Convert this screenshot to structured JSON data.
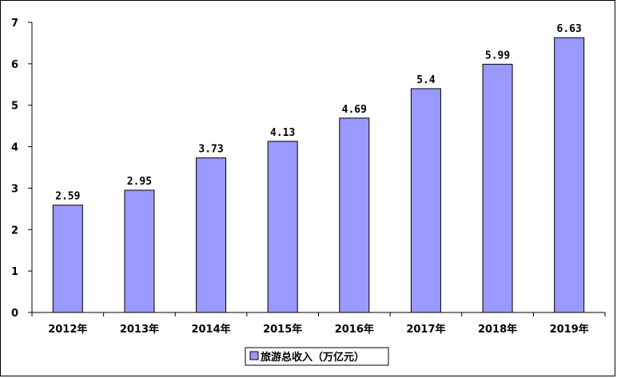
{
  "chart_data": {
    "type": "bar",
    "categories": [
      "2012年",
      "2013年",
      "2014年",
      "2015年",
      "2016年",
      "2017年",
      "2018年",
      "2019年"
    ],
    "series": [
      {
        "name": "旅游总收入（万亿元）",
        "values": [
          2.59,
          2.95,
          3.73,
          4.13,
          4.69,
          5.4,
          5.99,
          6.63
        ],
        "labels": [
          "2.59",
          "2.95",
          "3.73",
          "4.13",
          "4.69",
          "5.4",
          "5.99",
          "6.63"
        ]
      }
    ],
    "title": "",
    "xlabel": "",
    "ylabel": "",
    "ylim": [
      0,
      7
    ],
    "yticks": [
      "0",
      "1",
      "2",
      "3",
      "4",
      "5",
      "6",
      "7"
    ],
    "grid": false,
    "legend_position": "bottom",
    "colors": {
      "bar_fill": "#9999ff",
      "bar_stroke": "#000000",
      "axis": "#000000"
    }
  }
}
